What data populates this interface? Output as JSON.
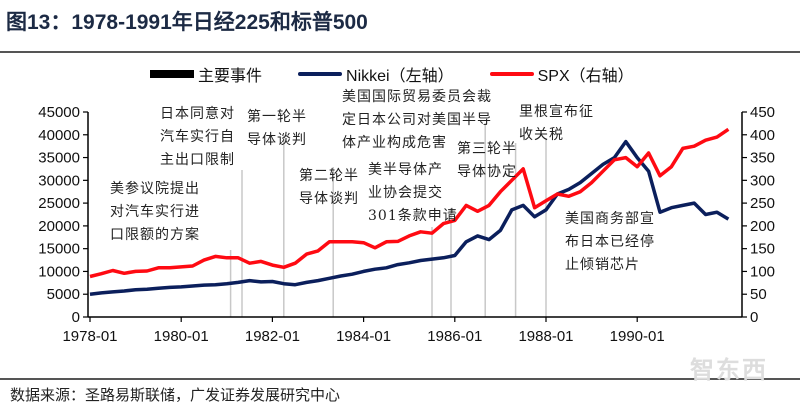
{
  "title": "图13：1978-1991年日经225和标普500",
  "legend": {
    "events": "主要事件",
    "nikkei": "Nikkei（左轴）",
    "spx": "SPX（右轴）"
  },
  "source": "数据来源：圣路易斯联储，广发证券发展研究中心",
  "watermark": "智东西",
  "colors": {
    "nikkei": "#0b1f5c",
    "spx": "#ff0a12",
    "events": "#c8c8c8",
    "title": "#1c2a44"
  },
  "chart_data": {
    "type": "line",
    "title": "1978-1991年日经225和标普500",
    "x_ticks": [
      "1978-01",
      "1980-01",
      "1982-01",
      "1984-01",
      "1986-01",
      "1988-01",
      "1990-01"
    ],
    "y_left": {
      "range": [
        0,
        45000
      ],
      "ticks": [
        0,
        5000,
        10000,
        15000,
        20000,
        25000,
        30000,
        35000,
        40000,
        45000
      ]
    },
    "y_right": {
      "range": [
        0,
        450
      ],
      "ticks": [
        0,
        50,
        100,
        150,
        200,
        250,
        300,
        350,
        400,
        450
      ]
    },
    "x": [
      "1978-01",
      "1978-04",
      "1978-07",
      "1978-10",
      "1979-01",
      "1979-04",
      "1979-07",
      "1979-10",
      "1980-01",
      "1980-04",
      "1980-07",
      "1980-10",
      "1981-01",
      "1981-04",
      "1981-07",
      "1981-10",
      "1982-01",
      "1982-04",
      "1982-07",
      "1982-10",
      "1983-01",
      "1983-04",
      "1983-07",
      "1983-10",
      "1984-01",
      "1984-04",
      "1984-07",
      "1984-10",
      "1985-01",
      "1985-04",
      "1985-07",
      "1985-10",
      "1986-01",
      "1986-04",
      "1986-07",
      "1986-10",
      "1987-01",
      "1987-04",
      "1987-07",
      "1987-10",
      "1988-01",
      "1988-04",
      "1988-07",
      "1988-10",
      "1989-01",
      "1989-04",
      "1989-07",
      "1989-10",
      "1990-01",
      "1990-04",
      "1990-07",
      "1990-10",
      "1991-01",
      "1991-04",
      "1991-07",
      "1991-10",
      "1992-01"
    ],
    "series": [
      {
        "name": "Nikkei（左轴）",
        "axis": "left",
        "values": [
          5000,
          5300,
          5500,
          5700,
          6000,
          6100,
          6300,
          6500,
          6600,
          6800,
          7000,
          7100,
          7300,
          7600,
          8000,
          7700,
          7800,
          7300,
          7100,
          7600,
          8000,
          8500,
          9000,
          9400,
          10000,
          10500,
          10800,
          11500,
          11900,
          12400,
          12700,
          13000,
          13500,
          16500,
          17800,
          17000,
          19000,
          23500,
          24500,
          22000,
          23500,
          27000,
          28000,
          29500,
          31500,
          33500,
          35000,
          38500,
          35000,
          32000,
          23000,
          24000,
          24500,
          25000,
          22500,
          23000,
          21500
        ]
      },
      {
        "name": "SPX（右轴）",
        "axis": "right",
        "values": [
          89,
          95,
          102,
          96,
          100,
          101,
          108,
          108,
          110,
          112,
          125,
          133,
          130,
          130,
          118,
          122,
          114,
          109,
          118,
          138,
          145,
          165,
          165,
          165,
          163,
          152,
          165,
          166,
          178,
          187,
          184,
          205,
          212,
          245,
          232,
          245,
          275,
          300,
          325,
          240,
          255,
          270,
          265,
          275,
          295,
          320,
          345,
          350,
          330,
          360,
          310,
          330,
          370,
          375,
          388,
          395,
          412
        ]
      }
    ],
    "events": [
      {
        "date": "1981-02",
        "lines": [
          "美参议院提出",
          "对汽车实行进",
          "口限额的方案"
        ]
      },
      {
        "date": "1981-05",
        "lines": [
          "日本同意对",
          "汽车实行自",
          "主出口限制"
        ]
      },
      {
        "date": "1982-04",
        "lines": [
          "第一轮半",
          "导体谈判"
        ]
      },
      {
        "date": "1983-05",
        "lines": [
          "第二轮半",
          "导体谈判"
        ]
      },
      {
        "date": "1985-07",
        "lines": [
          "美半导体产",
          "业协会提交",
          "301条款申请"
        ]
      },
      {
        "date": "1985-12",
        "lines": [
          "美国国际贸易委员会裁",
          "定日本公司对美国半导",
          "体产业构成危害"
        ]
      },
      {
        "date": "1986-09",
        "lines": [
          "第三轮半",
          "导体协定"
        ]
      },
      {
        "date": "1987-05",
        "lines": [
          "里根宣布征",
          "收关税"
        ]
      },
      {
        "date": "1988-01",
        "lines": [
          "美国商务部宣",
          "布日本已经停",
          "止倾销芯片"
        ]
      }
    ],
    "legend_position": "top",
    "grid": false
  }
}
